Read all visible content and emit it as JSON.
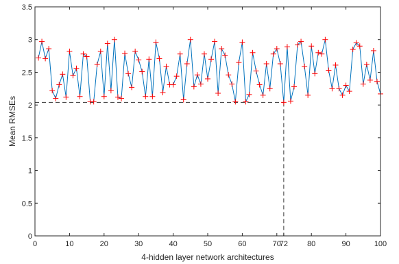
{
  "chart_data": {
    "type": "line",
    "title": "",
    "xlabel": "4-hidden layer network architectures",
    "ylabel": "Mean RMSEs",
    "xlim": [
      0,
      100
    ],
    "ylim": [
      0,
      3.5
    ],
    "x_ticks": [
      0,
      10,
      20,
      30,
      40,
      50,
      60,
      70,
      72,
      80,
      90,
      100
    ],
    "x_tick_labels": [
      "0",
      "10",
      "20",
      "30",
      "40",
      "50",
      "60",
      "70",
      "72",
      "80",
      "90",
      "100"
    ],
    "y_ticks": [
      0,
      0.5,
      1,
      1.5,
      2,
      2.5,
      3,
      3.5
    ],
    "y_tick_labels": [
      "0",
      "0.5",
      "1",
      "1.5",
      "2",
      "2.5",
      "3",
      "3.5"
    ],
    "grid": false,
    "legend": "none",
    "line_color": "#0072bd",
    "marker_color": "#ff0000",
    "marker": "+",
    "reference_color": "#333333",
    "reference_point": {
      "x": 72,
      "y": 2.04
    },
    "series": [
      {
        "x": [
          1,
          2,
          3,
          4,
          5,
          6,
          7,
          8,
          9,
          10,
          11,
          12,
          13,
          14,
          15,
          16,
          17,
          18,
          19,
          20,
          21,
          22,
          23,
          24,
          25,
          26,
          27,
          28,
          29,
          30,
          31,
          32,
          33,
          34,
          35,
          36,
          37,
          38,
          39,
          40,
          41,
          42,
          43,
          44,
          45,
          46,
          47,
          48,
          49,
          50,
          51,
          52,
          53,
          54,
          55,
          56,
          57,
          58,
          59,
          60,
          61,
          62,
          63,
          64,
          65,
          66,
          67,
          68,
          69,
          70,
          71,
          72,
          73,
          74,
          75,
          76,
          77,
          78,
          79,
          80,
          81,
          82,
          83,
          84,
          85,
          86,
          87,
          88,
          89,
          90,
          91,
          92,
          93,
          94,
          95,
          96,
          97,
          98,
          99,
          100
        ],
        "values": [
          2.72,
          2.97,
          2.71,
          2.86,
          2.22,
          2.1,
          2.31,
          2.47,
          2.12,
          2.82,
          2.45,
          2.56,
          2.13,
          2.78,
          2.74,
          2.05,
          2.05,
          2.62,
          2.82,
          2.13,
          2.94,
          2.22,
          3.0,
          2.12,
          2.1,
          2.79,
          2.48,
          2.27,
          2.82,
          2.69,
          2.51,
          2.13,
          2.7,
          2.13,
          2.96,
          2.71,
          2.19,
          2.59,
          2.31,
          2.31,
          2.44,
          2.78,
          2.08,
          2.63,
          3.0,
          2.28,
          2.46,
          2.32,
          2.78,
          2.4,
          2.7,
          2.97,
          2.18,
          2.86,
          2.76,
          2.46,
          2.32,
          2.05,
          2.65,
          2.96,
          2.05,
          2.16,
          2.8,
          2.52,
          2.31,
          2.15,
          2.63,
          2.25,
          2.78,
          2.86,
          2.63,
          2.04,
          2.89,
          2.06,
          2.28,
          2.92,
          2.97,
          2.59,
          2.15,
          2.9,
          2.48,
          2.8,
          2.78,
          3.0,
          2.53,
          2.25,
          2.61,
          2.25,
          2.15,
          2.3,
          2.21,
          2.85,
          2.95,
          2.9,
          2.32,
          2.62,
          2.38,
          2.83,
          2.36,
          2.17
        ]
      }
    ]
  }
}
